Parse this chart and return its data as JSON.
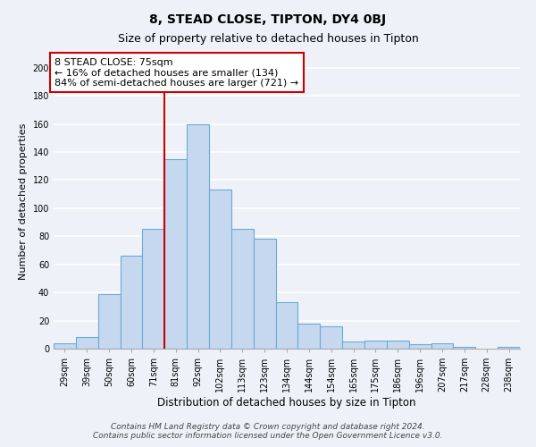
{
  "title": "8, STEAD CLOSE, TIPTON, DY4 0BJ",
  "subtitle": "Size of property relative to detached houses in Tipton",
  "xlabel": "Distribution of detached houses by size in Tipton",
  "ylabel": "Number of detached properties",
  "footer_line1": "Contains HM Land Registry data © Crown copyright and database right 2024.",
  "footer_line2": "Contains public sector information licensed under the Open Government Licence v3.0.",
  "bar_labels": [
    "29sqm",
    "39sqm",
    "50sqm",
    "60sqm",
    "71sqm",
    "81sqm",
    "92sqm",
    "102sqm",
    "113sqm",
    "123sqm",
    "134sqm",
    "144sqm",
    "154sqm",
    "165sqm",
    "175sqm",
    "186sqm",
    "196sqm",
    "207sqm",
    "217sqm",
    "228sqm",
    "238sqm"
  ],
  "bar_values": [
    4,
    8,
    39,
    66,
    85,
    135,
    160,
    113,
    85,
    78,
    33,
    18,
    16,
    5,
    6,
    6,
    3,
    4,
    1,
    0,
    1
  ],
  "bar_color": "#c5d8f0",
  "bar_edge_color": "#6aaad4",
  "annotation_line1": "8 STEAD CLOSE: 75sqm",
  "annotation_line2": "← 16% of detached houses are smaller (134)",
  "annotation_line3": "84% of semi-detached houses are larger (721) →",
  "vline_x_index": 4.5,
  "vline_color": "#cc0000",
  "ylim": [
    0,
    210
  ],
  "yticks": [
    0,
    20,
    40,
    60,
    80,
    100,
    120,
    140,
    160,
    180,
    200
  ],
  "background_color": "#eef2f8",
  "grid_color": "#ffffff",
  "title_fontsize": 10,
  "subtitle_fontsize": 9,
  "xlabel_fontsize": 8.5,
  "ylabel_fontsize": 8,
  "tick_fontsize": 7,
  "annotation_fontsize": 8,
  "footer_fontsize": 6.5
}
